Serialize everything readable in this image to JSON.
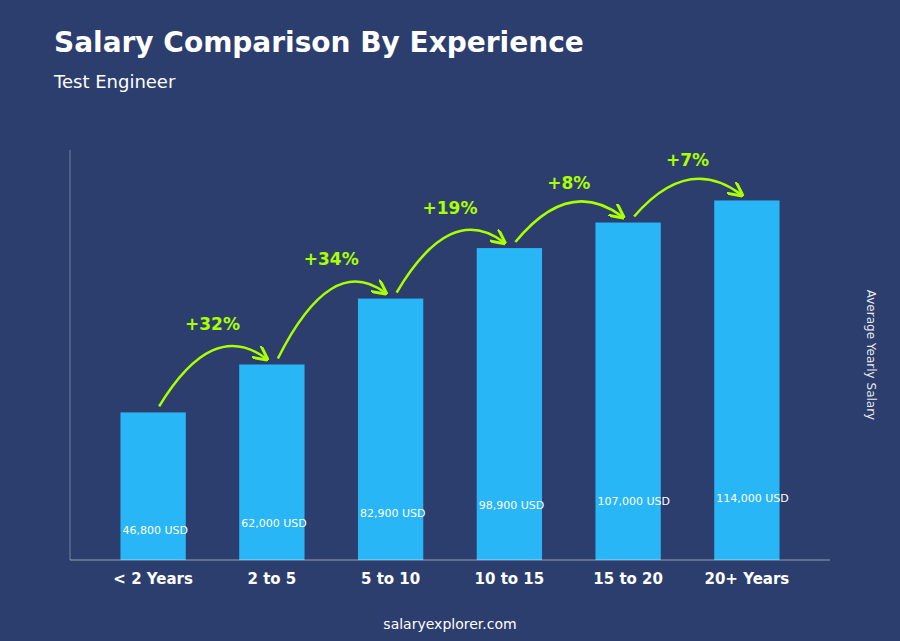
{
  "chart_data": {
    "type": "bar",
    "title": "Salary Comparison By Experience",
    "subtitle": "Test Engineer",
    "categories": [
      "< 2 Years",
      "2 to 5",
      "5 to 10",
      "10 to 15",
      "15 to 20",
      "20+ Years"
    ],
    "values": [
      46800,
      62000,
      82900,
      98900,
      107000,
      114000
    ],
    "value_labels": [
      "46,800 USD",
      "62,000 USD",
      "82,900 USD",
      "98,900 USD",
      "107,000 USD",
      "114,000 USD"
    ],
    "data_labels": true,
    "annotations": [
      "+32%",
      "+34%",
      "+19%",
      "+8%",
      "+7%"
    ],
    "ylabel": "Average Yearly Salary",
    "footer": "salaryexplorer.com",
    "color": "#29B6F6",
    "ylim": [
      0,
      130000
    ],
    "tick_labels": "x",
    "grid": false
  }
}
